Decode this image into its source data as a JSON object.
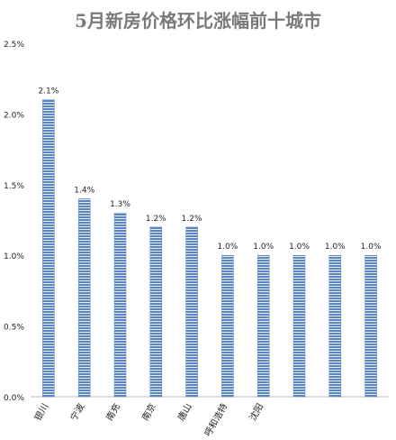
{
  "chart_data": {
    "type": "bar",
    "title": "5月新房价格环比涨幅前十城市",
    "categories": [
      "银川",
      "宁波",
      "南充",
      "南京",
      "唐山",
      "呼和浩特",
      "沈阳",
      "",
      "",
      ""
    ],
    "values": [
      2.1,
      1.4,
      1.3,
      1.2,
      1.2,
      1.0,
      1.0,
      1.0,
      1.0,
      1.0
    ],
    "data_labels": [
      "2.1%",
      "1.4%",
      "1.3%",
      "1.2%",
      "1.2%",
      "1.0%",
      "1.0%",
      "1.0%",
      "1.0%",
      "1.0%"
    ],
    "y_ticks": [
      "0.0%",
      "0.5%",
      "1.0%",
      "1.5%",
      "2.0%",
      "2.5%"
    ],
    "ylim": [
      0,
      2.5
    ],
    "grid": false,
    "legend": "none",
    "xlabel": "",
    "ylabel": "",
    "colors": {
      "bar": "#5b86c4",
      "bar_stripe": "#ffffff",
      "title": "#7a7a7a",
      "text": "#222222",
      "axis": "#bdbdbd"
    }
  }
}
